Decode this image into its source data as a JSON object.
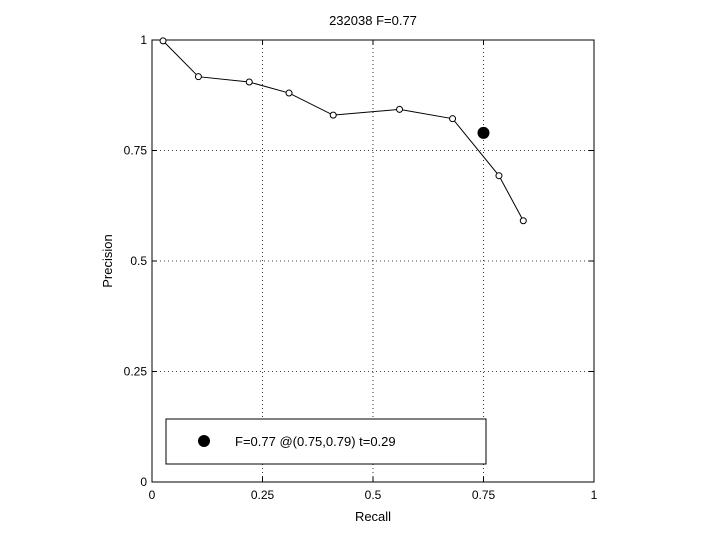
{
  "chart_data": {
    "type": "line",
    "title": "232038 F=0.77",
    "xlabel": "Recall",
    "ylabel": "Precision",
    "xlim": [
      0,
      1
    ],
    "ylim": [
      0,
      1
    ],
    "xticks": [
      0,
      0.25,
      0.5,
      0.75,
      1
    ],
    "yticks": [
      0,
      0.25,
      0.5,
      0.75,
      1
    ],
    "xtick_labels": [
      "0",
      "0.25",
      "0.5",
      "0.75",
      "1"
    ],
    "ytick_labels": [
      "0",
      "0.25",
      "0.5",
      "0.75",
      "1"
    ],
    "grid": true,
    "series": [
      {
        "marker": "open-circle",
        "x": [
          0.025,
          0.105,
          0.22,
          0.31,
          0.41,
          0.56,
          0.68,
          0.785,
          0.84
        ],
        "y": [
          0.998,
          0.917,
          0.905,
          0.88,
          0.83,
          0.843,
          0.822,
          0.693,
          0.591
        ]
      }
    ],
    "best_point": {
      "x": 0.75,
      "y": 0.79
    },
    "legend": {
      "placement": "bottom-left",
      "label": "F=0.77 @(0.75,0.79) t=0.29"
    }
  }
}
